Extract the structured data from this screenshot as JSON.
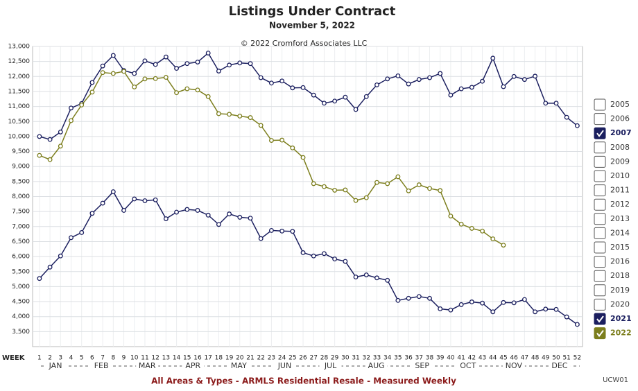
{
  "chart_data": {
    "type": "line",
    "title": "Listings Under Contract",
    "subtitle": "November 5, 2022",
    "copyright": "© 2022 Cromford Associates LLC",
    "x_label": "WEEK",
    "footer": "All Areas & Types - ARMLS Residential Resale - Measured Weekly",
    "code": "UCW01",
    "months": [
      "JAN",
      "FEB",
      "MAR",
      "APR",
      "MAY",
      "JUN",
      "JUL",
      "AUG",
      "SEP",
      "OCT",
      "NOV",
      "DEC"
    ],
    "x": [
      1,
      2,
      3,
      4,
      5,
      6,
      7,
      8,
      9,
      10,
      11,
      12,
      13,
      14,
      15,
      16,
      17,
      18,
      19,
      20,
      21,
      22,
      23,
      24,
      25,
      26,
      27,
      28,
      29,
      30,
      31,
      32,
      33,
      34,
      35,
      36,
      37,
      38,
      39,
      40,
      41,
      42,
      43,
      44,
      45,
      46,
      47,
      48,
      49,
      50,
      51,
      52
    ],
    "xlim": [
      0.35,
      52.5
    ],
    "xticks": [
      1,
      2,
      3,
      4,
      5,
      6,
      7,
      8,
      9,
      10,
      11,
      12,
      13,
      14,
      15,
      16,
      17,
      18,
      19,
      20,
      21,
      22,
      23,
      24,
      25,
      26,
      27,
      28,
      29,
      30,
      31,
      32,
      33,
      34,
      35,
      36,
      37,
      38,
      39,
      40,
      41,
      42,
      43,
      44,
      45,
      46,
      47,
      48,
      49,
      50,
      51,
      52
    ],
    "ylim": [
      3000,
      13000
    ],
    "yticks": [
      {
        "value": 3500,
        "label": "3,500"
      },
      {
        "value": 4000,
        "label": "4,000"
      },
      {
        "value": 4500,
        "label": "4,500"
      },
      {
        "value": 5000,
        "label": "5,000"
      },
      {
        "value": 5500,
        "label": "5,500"
      },
      {
        "value": 6000,
        "label": "6,000"
      },
      {
        "value": 6500,
        "label": "6,500"
      },
      {
        "value": 7000,
        "label": "7,000"
      },
      {
        "value": 7500,
        "label": "7,500"
      },
      {
        "value": 8000,
        "label": "8,000"
      },
      {
        "value": 8500,
        "label": "8,500"
      },
      {
        "value": 9000,
        "label": "9,000"
      },
      {
        "value": 9500,
        "label": "9,500"
      },
      {
        "value": 10000,
        "label": "10,000"
      },
      {
        "value": 10500,
        "label": "10,500"
      },
      {
        "value": 11000,
        "label": "11,000"
      },
      {
        "value": 11500,
        "label": "11,500"
      },
      {
        "value": 12000,
        "label": "12,000"
      },
      {
        "value": 12500,
        "label": "12,500"
      },
      {
        "value": 13000,
        "label": "13,000"
      }
    ],
    "grid": true,
    "series": [
      {
        "name": "2007",
        "color": "#1b1f5f",
        "values": [
          10000,
          9900,
          10150,
          10950,
          11100,
          11800,
          12350,
          12700,
          12200,
          12100,
          12520,
          12400,
          12650,
          12270,
          12430,
          12480,
          12780,
          12180,
          12380,
          12450,
          12430,
          11960,
          11780,
          11850,
          11620,
          11630,
          11380,
          11110,
          11180,
          11310,
          10900,
          11330,
          11720,
          11920,
          12020,
          11750,
          11900,
          11960,
          12100,
          11380,
          11590,
          11640,
          11840,
          12610,
          11660,
          12000,
          11900,
          12010,
          11110,
          11110,
          10640,
          10360
        ]
      },
      {
        "name": "2021",
        "color": "#1b1f5f",
        "values": [
          5270,
          5650,
          6020,
          6630,
          6800,
          7440,
          7780,
          8160,
          7540,
          7920,
          7860,
          7890,
          7260,
          7480,
          7570,
          7540,
          7380,
          7070,
          7420,
          7310,
          7280,
          6600,
          6870,
          6850,
          6840,
          6130,
          6020,
          6100,
          5920,
          5840,
          5320,
          5390,
          5290,
          5210,
          4540,
          4610,
          4670,
          4610,
          4260,
          4220,
          4400,
          4490,
          4450,
          4160,
          4470,
          4460,
          4570,
          4160,
          4250,
          4240,
          3990,
          3740
        ]
      },
      {
        "name": "2022",
        "color": "#7c7e1d",
        "values": [
          9370,
          9230,
          9680,
          10530,
          11050,
          11480,
          12130,
          12100,
          12170,
          11650,
          11920,
          11930,
          11970,
          11460,
          11590,
          11550,
          11330,
          10760,
          10740,
          10680,
          10630,
          10370,
          9870,
          9880,
          9620,
          9300,
          8430,
          8330,
          8210,
          8220,
          7870,
          7960,
          8470,
          8430,
          8660,
          8190,
          8390,
          8270,
          8200,
          7350,
          7080,
          6940,
          6850,
          6590,
          6380,
          null,
          null,
          null,
          null,
          null,
          null,
          null
        ]
      }
    ],
    "unchecked_years": [
      "2005",
      "2006",
      "2008",
      "2009",
      "2010",
      "2011",
      "2012",
      "2013",
      "2014",
      "2015",
      "2016",
      "2018",
      "2019",
      "2020"
    ]
  }
}
